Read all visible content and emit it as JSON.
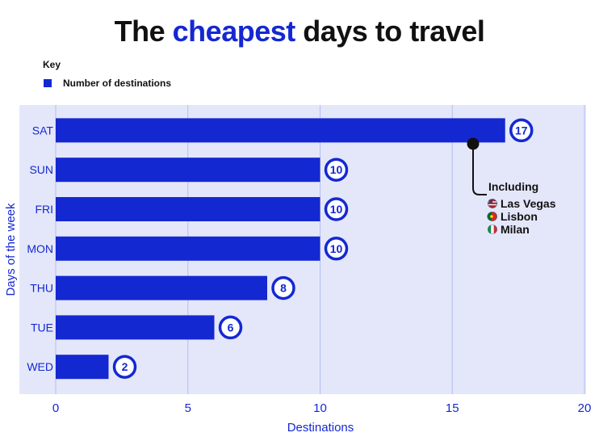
{
  "title": {
    "before": "The ",
    "highlight": "cheapest",
    "after": " days to travel"
  },
  "legend": {
    "heading": "Key",
    "items": [
      {
        "label": "Number of destinations"
      }
    ]
  },
  "annotation": {
    "heading": "Including",
    "items": [
      {
        "label": "Las Vegas",
        "icon": "us-flag-icon"
      },
      {
        "label": "Lisbon",
        "icon": "portugal-flag-icon"
      },
      {
        "label": "Milan",
        "icon": "italy-flag-icon"
      }
    ]
  },
  "colors": {
    "bar": "#1428d2",
    "plot_background": "#e4e7fa",
    "gridline": "#b3bdf2",
    "text_accent": "#1428d2"
  },
  "chart_data": {
    "type": "bar",
    "orientation": "horizontal",
    "categories": [
      "SAT",
      "SUN",
      "FRI",
      "MON",
      "THU",
      "TUE",
      "WED"
    ],
    "series": [
      {
        "name": "Number of destinations",
        "values": [
          17,
          10,
          10,
          10,
          8,
          6,
          2
        ]
      }
    ],
    "xlabel": "Destinations",
    "ylabel": "Days of the week",
    "xlim": [
      0,
      20
    ],
    "xticks": [
      0,
      5,
      10,
      15,
      20
    ],
    "grid": "vertical",
    "legend_position": "top-left"
  }
}
